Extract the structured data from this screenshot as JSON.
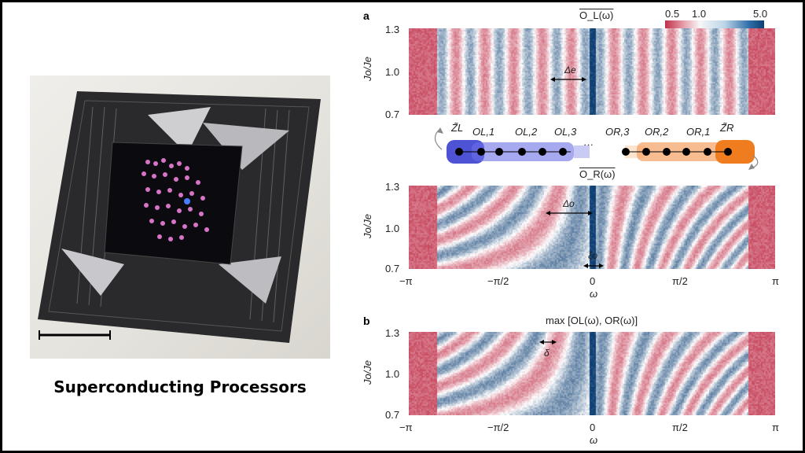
{
  "left": {
    "caption": "Superconducting Processors"
  },
  "panel_a": {
    "letter": "a",
    "top_title": "O_L(ω)",
    "bottom_title": "O_R(ω)",
    "delta_e": "Δe",
    "delta_o": "Δo",
    "xi_o": "ξo",
    "chain_labels": [
      "Z̃L",
      "OL,1",
      "OL,2",
      "OL,3",
      "···",
      "OR,3",
      "OR,2",
      "OR,1",
      "Z̃R"
    ]
  },
  "panel_b": {
    "letter": "b",
    "title": "max [OL(ω), OR(ω)]",
    "delta": "δ"
  },
  "colorbar": {
    "labels": [
      "0.5",
      "1.0",
      "5.0"
    ]
  },
  "axes": {
    "ylabel": "Jo/Je",
    "yticks": [
      "1.3",
      "1.0",
      "0.7"
    ],
    "xticks": [
      "−π",
      "−π/2",
      "0",
      "π/2",
      "π"
    ],
    "xlabel": "ω"
  },
  "colors": {
    "red": "#c0304a",
    "blue": "#0d3f74",
    "chain_left": "#4a4fd6",
    "chain_right": "#f08a2c"
  }
}
